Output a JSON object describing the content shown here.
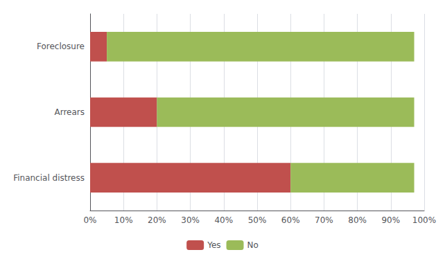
{
  "chart_data": {
    "type": "bar",
    "orientation": "horizontal",
    "stacked": true,
    "categories": [
      "Financial distress",
      "Arrears",
      "Foreclosure"
    ],
    "series": [
      {
        "name": "Yes",
        "color": "#c0504d",
        "values": [
          60,
          20,
          5
        ]
      },
      {
        "name": "No",
        "color": "#9bbb59",
        "values": [
          37,
          77,
          92
        ]
      }
    ],
    "xlim": [
      0,
      100
    ],
    "xticks": [
      {
        "value": 0,
        "label": "0%"
      },
      {
        "value": 10,
        "label": "10%"
      },
      {
        "value": 20,
        "label": "20%"
      },
      {
        "value": 30,
        "label": "30%"
      },
      {
        "value": 40,
        "label": "40%"
      },
      {
        "value": 50,
        "label": "50%"
      },
      {
        "value": 60,
        "label": "60%"
      },
      {
        "value": 70,
        "label": "70%"
      },
      {
        "value": 80,
        "label": "80%"
      },
      {
        "value": 90,
        "label": "90%"
      },
      {
        "value": 100,
        "label": "100%"
      }
    ],
    "grid": true,
    "legend": "bottom"
  }
}
